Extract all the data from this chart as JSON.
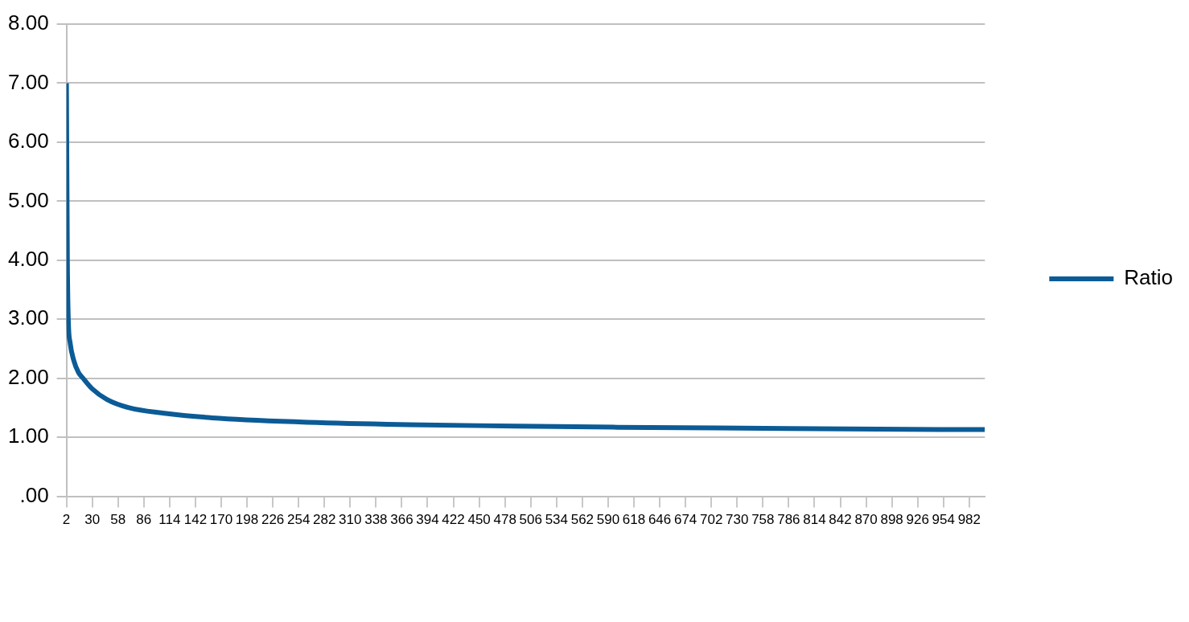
{
  "chart_data": {
    "type": "line",
    "x": [
      2,
      3,
      4,
      6,
      10,
      15,
      20,
      30,
      46,
      70,
      112,
      160,
      254,
      350,
      490,
      600,
      708,
      850,
      999
    ],
    "series": [
      {
        "name": "Ratio",
        "color": "#0b5b96",
        "values": [
          7.0,
          4.0,
          3.0,
          2.6,
          2.3,
          2.1,
          2.0,
          1.82,
          1.64,
          1.5,
          1.4,
          1.33,
          1.26,
          1.22,
          1.19,
          1.17,
          1.16,
          1.14,
          1.13
        ]
      }
    ],
    "xlim": [
      2,
      999
    ],
    "xticks": [
      2,
      30,
      58,
      86,
      114,
      142,
      170,
      198,
      226,
      254,
      282,
      310,
      338,
      366,
      394,
      422,
      450,
      478,
      506,
      534,
      562,
      590,
      618,
      646,
      674,
      702,
      730,
      758,
      786,
      814,
      842,
      870,
      898,
      926,
      954,
      982
    ],
    "ylim": [
      0,
      8
    ],
    "yticks": [
      {
        "value": 0,
        "label": ".00"
      },
      {
        "value": 1,
        "label": "1.00"
      },
      {
        "value": 2,
        "label": "2.00"
      },
      {
        "value": 3,
        "label": "3.00"
      },
      {
        "value": 4,
        "label": "4.00"
      },
      {
        "value": 5,
        "label": "5.00"
      },
      {
        "value": 6,
        "label": "6.00"
      },
      {
        "value": 7,
        "label": "7.00"
      },
      {
        "value": 8,
        "label": "8.00"
      }
    ],
    "grid": "y",
    "legend": "right",
    "marker": "none",
    "line_style": "solid"
  }
}
